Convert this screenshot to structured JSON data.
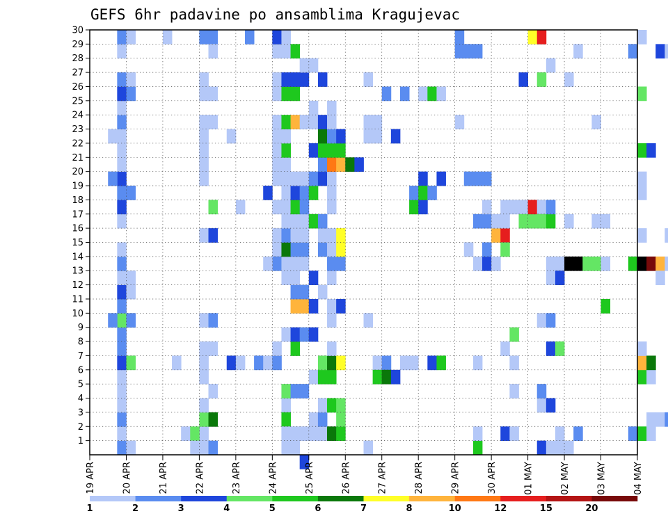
{
  "chart_data": {
    "type": "heatmap",
    "title": "GEFS 6hr padavine po ansamblima Kragujevac",
    "xlabel": "",
    "ylabel": "",
    "x_tick_labels": [
      "19 APR",
      "20 APR",
      "21 APR",
      "22 APR",
      "23 APR",
      "24 APR",
      "25 APR",
      "26 APR",
      "27 APR",
      "28 APR",
      "29 APR",
      "30 APR",
      "01 MAY",
      "02 MAY",
      "03 MAY",
      "04 MAY"
    ],
    "y_tick_labels": [
      "1",
      "2",
      "3",
      "4",
      "5",
      "6",
      "7",
      "8",
      "9",
      "10",
      "11",
      "12",
      "13",
      "14",
      "15",
      "16",
      "17",
      "18",
      "19",
      "20",
      "21",
      "22",
      "23",
      "24",
      "25",
      "26",
      "27",
      "28",
      "29",
      "30"
    ],
    "time_steps_per_day": 4,
    "members": 30,
    "grid": true,
    "legend_placement": "bottom",
    "color_scale": {
      "boundaries": [
        "1",
        "2",
        "3",
        "4",
        "5",
        "6",
        "7",
        "8",
        "10",
        "12",
        "15",
        "20"
      ],
      "colors": [
        "#b4c8f8",
        "#5a8cf0",
        "#1e46dc",
        "#64e664",
        "#1ec81e",
        "#0a780a",
        "#ffff28",
        "#ffb43c",
        "#ff7814",
        "#e61e1e",
        "#b41414",
        "#780a0a"
      ]
    },
    "cells": [
      [
        3,
        1,
        2
      ],
      [
        3,
        2,
        1
      ],
      [
        3,
        3,
        2
      ],
      [
        3,
        4,
        1
      ],
      [
        3,
        5,
        1
      ],
      [
        3,
        6,
        1
      ],
      [
        3,
        7,
        3
      ],
      [
        3,
        8,
        2
      ],
      [
        3,
        9,
        2
      ],
      [
        3,
        10,
        4
      ],
      [
        3,
        11,
        2
      ],
      [
        3,
        12,
        3
      ],
      [
        3,
        13,
        1
      ],
      [
        3,
        14,
        2
      ],
      [
        3,
        15,
        1
      ],
      [
        3,
        17,
        1
      ],
      [
        3,
        18,
        3
      ],
      [
        3,
        19,
        2
      ],
      [
        3,
        20,
        3
      ],
      [
        3,
        21,
        1
      ],
      [
        3,
        22,
        1
      ],
      [
        3,
        23,
        1
      ],
      [
        3,
        24,
        2
      ],
      [
        3,
        25,
        1
      ],
      [
        3,
        26,
        3
      ],
      [
        3,
        27,
        2
      ],
      [
        3,
        29,
        1
      ],
      [
        3,
        30,
        2
      ],
      [
        2,
        10,
        2
      ],
      [
        2,
        20,
        2
      ],
      [
        2,
        23,
        1
      ],
      [
        4,
        1,
        1
      ],
      [
        4,
        7,
        4
      ],
      [
        4,
        10,
        2
      ],
      [
        4,
        12,
        1
      ],
      [
        4,
        13,
        1
      ],
      [
        4,
        19,
        2
      ],
      [
        4,
        26,
        2
      ],
      [
        4,
        27,
        1
      ],
      [
        4,
        30,
        1
      ],
      [
        8,
        30,
        1
      ],
      [
        12,
        1,
        1
      ],
      [
        12,
        2,
        1
      ],
      [
        12,
        7,
        1
      ],
      [
        10,
        2,
        1
      ],
      [
        11,
        2,
        4
      ],
      [
        11,
        1,
        1
      ],
      [
        9,
        7,
        1
      ],
      [
        12,
        3,
        4
      ],
      [
        13,
        3,
        6
      ],
      [
        13,
        1,
        2
      ],
      [
        12,
        4,
        1
      ],
      [
        13,
        5,
        1
      ],
      [
        12,
        6,
        1
      ],
      [
        12,
        8,
        1
      ],
      [
        13,
        8,
        1
      ],
      [
        12,
        10,
        1
      ],
      [
        13,
        10,
        2
      ],
      [
        12,
        16,
        1
      ],
      [
        13,
        16,
        3
      ],
      [
        13,
        18,
        4
      ],
      [
        12,
        20,
        1
      ],
      [
        12,
        21,
        1
      ],
      [
        12,
        22,
        1
      ],
      [
        12,
        24,
        1
      ],
      [
        13,
        24,
        1
      ],
      [
        12,
        26,
        1
      ],
      [
        13,
        26,
        1
      ],
      [
        12,
        27,
        1
      ],
      [
        12,
        30,
        2
      ],
      [
        13,
        30,
        2
      ],
      [
        13,
        29,
        1
      ],
      [
        12,
        23,
        1
      ],
      [
        15,
        7,
        3
      ],
      [
        16,
        7,
        1
      ],
      [
        15,
        23,
        1
      ],
      [
        17,
        30,
        2
      ],
      [
        16,
        18,
        1
      ],
      [
        18,
        7,
        2
      ],
      [
        19,
        7,
        1
      ],
      [
        19,
        19,
        3
      ],
      [
        20,
        15,
        1
      ],
      [
        20,
        14,
        2
      ],
      [
        19,
        14,
        1
      ],
      [
        21,
        2,
        1
      ],
      [
        21,
        3,
        1
      ],
      [
        21,
        4,
        1
      ],
      [
        21,
        5,
        1
      ],
      [
        21,
        1,
        1
      ],
      [
        22,
        1,
        1
      ],
      [
        20,
        7,
        2
      ],
      [
        20,
        8,
        1
      ],
      [
        20,
        16,
        1
      ],
      [
        20,
        18,
        1
      ],
      [
        20,
        20,
        1
      ],
      [
        20,
        21,
        1
      ],
      [
        20,
        22,
        1
      ],
      [
        20,
        23,
        1
      ],
      [
        20,
        24,
        1
      ],
      [
        20,
        26,
        1
      ],
      [
        20,
        27,
        1
      ],
      [
        20,
        29,
        1
      ],
      [
        20,
        30,
        3
      ],
      [
        21,
        30,
        1
      ],
      [
        21,
        3,
        5
      ],
      [
        21,
        2,
        1
      ],
      [
        21,
        5,
        4
      ],
      [
        21,
        9,
        1
      ],
      [
        21,
        13,
        1
      ],
      [
        21,
        14,
        1
      ],
      [
        21,
        15,
        6
      ],
      [
        21,
        16,
        2
      ],
      [
        21,
        17,
        1
      ],
      [
        21,
        18,
        1
      ],
      [
        21,
        19,
        1
      ],
      [
        21,
        20,
        1
      ],
      [
        21,
        21,
        1
      ],
      [
        21,
        22,
        5
      ],
      [
        21,
        23,
        1
      ],
      [
        21,
        24,
        5
      ],
      [
        21,
        26,
        5
      ],
      [
        21,
        27,
        3
      ],
      [
        21,
        29,
        1
      ],
      [
        22,
        2,
        1
      ],
      [
        22,
        5,
        2
      ],
      [
        22,
        8,
        5
      ],
      [
        22,
        9,
        3
      ],
      [
        22,
        11,
        8
      ],
      [
        22,
        12,
        2
      ],
      [
        22,
        13,
        1
      ],
      [
        22,
        14,
        1
      ],
      [
        22,
        15,
        2
      ],
      [
        22,
        16,
        1
      ],
      [
        22,
        17,
        1
      ],
      [
        22,
        18,
        5
      ],
      [
        22,
        19,
        3
      ],
      [
        22,
        20,
        1
      ],
      [
        22,
        24,
        8
      ],
      [
        22,
        26,
        5
      ],
      [
        22,
        27,
        3
      ],
      [
        22,
        29,
        5
      ],
      [
        23,
        0,
        3
      ],
      [
        23,
        2,
        1
      ],
      [
        23,
        5,
        2
      ],
      [
        23,
        9,
        2
      ],
      [
        23,
        11,
        8
      ],
      [
        23,
        12,
        2
      ],
      [
        23,
        14,
        1
      ],
      [
        23,
        15,
        2
      ],
      [
        23,
        16,
        1
      ],
      [
        23,
        17,
        1
      ],
      [
        23,
        18,
        2
      ],
      [
        23,
        19,
        2
      ],
      [
        23,
        20,
        1
      ],
      [
        23,
        24,
        1
      ],
      [
        23,
        27,
        3
      ],
      [
        23,
        28,
        1
      ],
      [
        24,
        2,
        1
      ],
      [
        24,
        3,
        1
      ],
      [
        24,
        6,
        1
      ],
      [
        24,
        9,
        3
      ],
      [
        24,
        11,
        3
      ],
      [
        24,
        13,
        3
      ],
      [
        24,
        17,
        5
      ],
      [
        24,
        19,
        5
      ],
      [
        24,
        20,
        2
      ],
      [
        24,
        22,
        3
      ],
      [
        24,
        24,
        1
      ],
      [
        24,
        25,
        1
      ],
      [
        24,
        28,
        1
      ],
      [
        25,
        2,
        1
      ],
      [
        25,
        3,
        2
      ],
      [
        25,
        4,
        1
      ],
      [
        25,
        6,
        5
      ],
      [
        25,
        7,
        4
      ],
      [
        25,
        12,
        1
      ],
      [
        25,
        15,
        2
      ],
      [
        25,
        16,
        1
      ],
      [
        25,
        17,
        2
      ],
      [
        25,
        20,
        3
      ],
      [
        25,
        21,
        2
      ],
      [
        25,
        22,
        5
      ],
      [
        25,
        23,
        6
      ],
      [
        25,
        24,
        3
      ],
      [
        25,
        27,
        3
      ],
      [
        26,
        2,
        6
      ],
      [
        26,
        4,
        5
      ],
      [
        26,
        6,
        5
      ],
      [
        26,
        7,
        6
      ],
      [
        26,
        8,
        1
      ],
      [
        26,
        10,
        1
      ],
      [
        26,
        11,
        1
      ],
      [
        26,
        13,
        1
      ],
      [
        26,
        14,
        2
      ],
      [
        26,
        15,
        1
      ],
      [
        26,
        16,
        1
      ],
      [
        26,
        18,
        1
      ],
      [
        26,
        19,
        1
      ],
      [
        26,
        20,
        1
      ],
      [
        26,
        21,
        9
      ],
      [
        26,
        22,
        5
      ],
      [
        26,
        23,
        2
      ],
      [
        26,
        24,
        1
      ],
      [
        26,
        25,
        1
      ],
      [
        27,
        2,
        5
      ],
      [
        27,
        3,
        4
      ],
      [
        27,
        4,
        4
      ],
      [
        27,
        7,
        7
      ],
      [
        27,
        11,
        3
      ],
      [
        27,
        14,
        2
      ],
      [
        27,
        15,
        7
      ],
      [
        27,
        16,
        7
      ],
      [
        27,
        21,
        8
      ],
      [
        27,
        22,
        5
      ],
      [
        27,
        23,
        3
      ],
      [
        28,
        21,
        6
      ],
      [
        29,
        21,
        3
      ],
      [
        30,
        27,
        1
      ],
      [
        30,
        1,
        1
      ],
      [
        30,
        10,
        1
      ],
      [
        30,
        23,
        1
      ],
      [
        30,
        24,
        1
      ],
      [
        31,
        7,
        1
      ],
      [
        31,
        6,
        5
      ],
      [
        31,
        23,
        1
      ],
      [
        31,
        24,
        1
      ],
      [
        32,
        7,
        2
      ],
      [
        32,
        6,
        6
      ],
      [
        32,
        26,
        2
      ],
      [
        33,
        6,
        3
      ],
      [
        33,
        23,
        3
      ],
      [
        34,
        7,
        1
      ],
      [
        34,
        26,
        2
      ],
      [
        35,
        7,
        1
      ],
      [
        35,
        18,
        5
      ],
      [
        35,
        19,
        2
      ],
      [
        36,
        18,
        3
      ],
      [
        36,
        20,
        3
      ],
      [
        36,
        19,
        5
      ],
      [
        36,
        26,
        1
      ],
      [
        37,
        7,
        3
      ],
      [
        37,
        19,
        2
      ],
      [
        37,
        26,
        5
      ],
      [
        38,
        7,
        5
      ],
      [
        38,
        20,
        3
      ],
      [
        38,
        26,
        1
      ],
      [
        40,
        29,
        2
      ],
      [
        40,
        30,
        2
      ],
      [
        40,
        24,
        1
      ],
      [
        41,
        20,
        2
      ],
      [
        41,
        29,
        2
      ],
      [
        41,
        15,
        1
      ],
      [
        42,
        7,
        1
      ],
      [
        42,
        14,
        1
      ],
      [
        42,
        17,
        2
      ],
      [
        42,
        20,
        2
      ],
      [
        42,
        29,
        2
      ],
      [
        42,
        1,
        5
      ],
      [
        42,
        2,
        1
      ],
      [
        43,
        14,
        3
      ],
      [
        43,
        15,
        2
      ],
      [
        43,
        17,
        2
      ],
      [
        43,
        18,
        1
      ],
      [
        43,
        20,
        2
      ],
      [
        44,
        14,
        1
      ],
      [
        44,
        16,
        8
      ],
      [
        44,
        17,
        1
      ],
      [
        45,
        2,
        3
      ],
      [
        45,
        8,
        1
      ],
      [
        45,
        16,
        10
      ],
      [
        45,
        15,
        4
      ],
      [
        45,
        17,
        1
      ],
      [
        45,
        18,
        1
      ],
      [
        46,
        2,
        1
      ],
      [
        46,
        7,
        1
      ],
      [
        46,
        9,
        4
      ],
      [
        46,
        18,
        1
      ],
      [
        46,
        5,
        1
      ],
      [
        47,
        17,
        4
      ],
      [
        47,
        18,
        1
      ],
      [
        47,
        27,
        3
      ],
      [
        47,
        17,
        4
      ],
      [
        48,
        17,
        4
      ],
      [
        48,
        18,
        10
      ],
      [
        48,
        30,
        7
      ],
      [
        49,
        18,
        1
      ],
      [
        49,
        17,
        4
      ],
      [
        49,
        10,
        1
      ],
      [
        49,
        30,
        10
      ],
      [
        49,
        27,
        4
      ],
      [
        49,
        1,
        3
      ],
      [
        49,
        4,
        1
      ],
      [
        49,
        5,
        2
      ],
      [
        50,
        8,
        3
      ],
      [
        50,
        10,
        2
      ],
      [
        50,
        17,
        5
      ],
      [
        50,
        1,
        1
      ],
      [
        50,
        4,
        3
      ],
      [
        50,
        13,
        1
      ],
      [
        50,
        14,
        1
      ],
      [
        50,
        18,
        2
      ],
      [
        50,
        28,
        1
      ],
      [
        51,
        8,
        4
      ],
      [
        51,
        14,
        1
      ],
      [
        51,
        13,
        3
      ],
      [
        51,
        1,
        1
      ],
      [
        51,
        2,
        1
      ],
      [
        52,
        1,
        1
      ],
      [
        52,
        14,
        13
      ],
      [
        52,
        17,
        1
      ],
      [
        52,
        27,
        1
      ],
      [
        53,
        14,
        13
      ],
      [
        53,
        2,
        2
      ],
      [
        53,
        29,
        1
      ],
      [
        54,
        14,
        4
      ],
      [
        55,
        14,
        4
      ],
      [
        55,
        17,
        1
      ],
      [
        55,
        24,
        1
      ],
      [
        56,
        11,
        5
      ],
      [
        56,
        17,
        1
      ],
      [
        56,
        14,
        1
      ],
      [
        59,
        2,
        2
      ],
      [
        59,
        29,
        2
      ],
      [
        59,
        14,
        5
      ],
      [
        60,
        2,
        5
      ],
      [
        60,
        14,
        13
      ],
      [
        60,
        22,
        5
      ],
      [
        60,
        26,
        4
      ],
      [
        60,
        30,
        1
      ],
      [
        60,
        6,
        5
      ],
      [
        60,
        7,
        8
      ],
      [
        60,
        8,
        1
      ],
      [
        60,
        16,
        1
      ],
      [
        60,
        19,
        1
      ],
      [
        60,
        20,
        1
      ],
      [
        61,
        14,
        12
      ],
      [
        61,
        22,
        3
      ],
      [
        61,
        6,
        1
      ],
      [
        61,
        7,
        6
      ],
      [
        61,
        3,
        1
      ],
      [
        61,
        2,
        1
      ],
      [
        62,
        14,
        8
      ],
      [
        62,
        3,
        1
      ],
      [
        62,
        13,
        1
      ],
      [
        62,
        29,
        3
      ],
      [
        63,
        14,
        1
      ],
      [
        63,
        3,
        2
      ],
      [
        63,
        16,
        1
      ],
      [
        63,
        29,
        1
      ],
      [
        64,
        3,
        8
      ],
      [
        64,
        29,
        7
      ],
      [
        64,
        23,
        1
      ],
      [
        64,
        24,
        1
      ],
      [
        64,
        6,
        1
      ],
      [
        64,
        5,
        1
      ],
      [
        65,
        3,
        6
      ],
      [
        65,
        29,
        4
      ],
      [
        65,
        24,
        1
      ],
      [
        65,
        19,
        4
      ],
      [
        65,
        16,
        2
      ],
      [
        65,
        20,
        2
      ]
    ]
  },
  "legend_labels": [
    "1",
    "2",
    "3",
    "4",
    "5",
    "6",
    "7",
    "8",
    "10",
    "12",
    "15",
    "20"
  ]
}
